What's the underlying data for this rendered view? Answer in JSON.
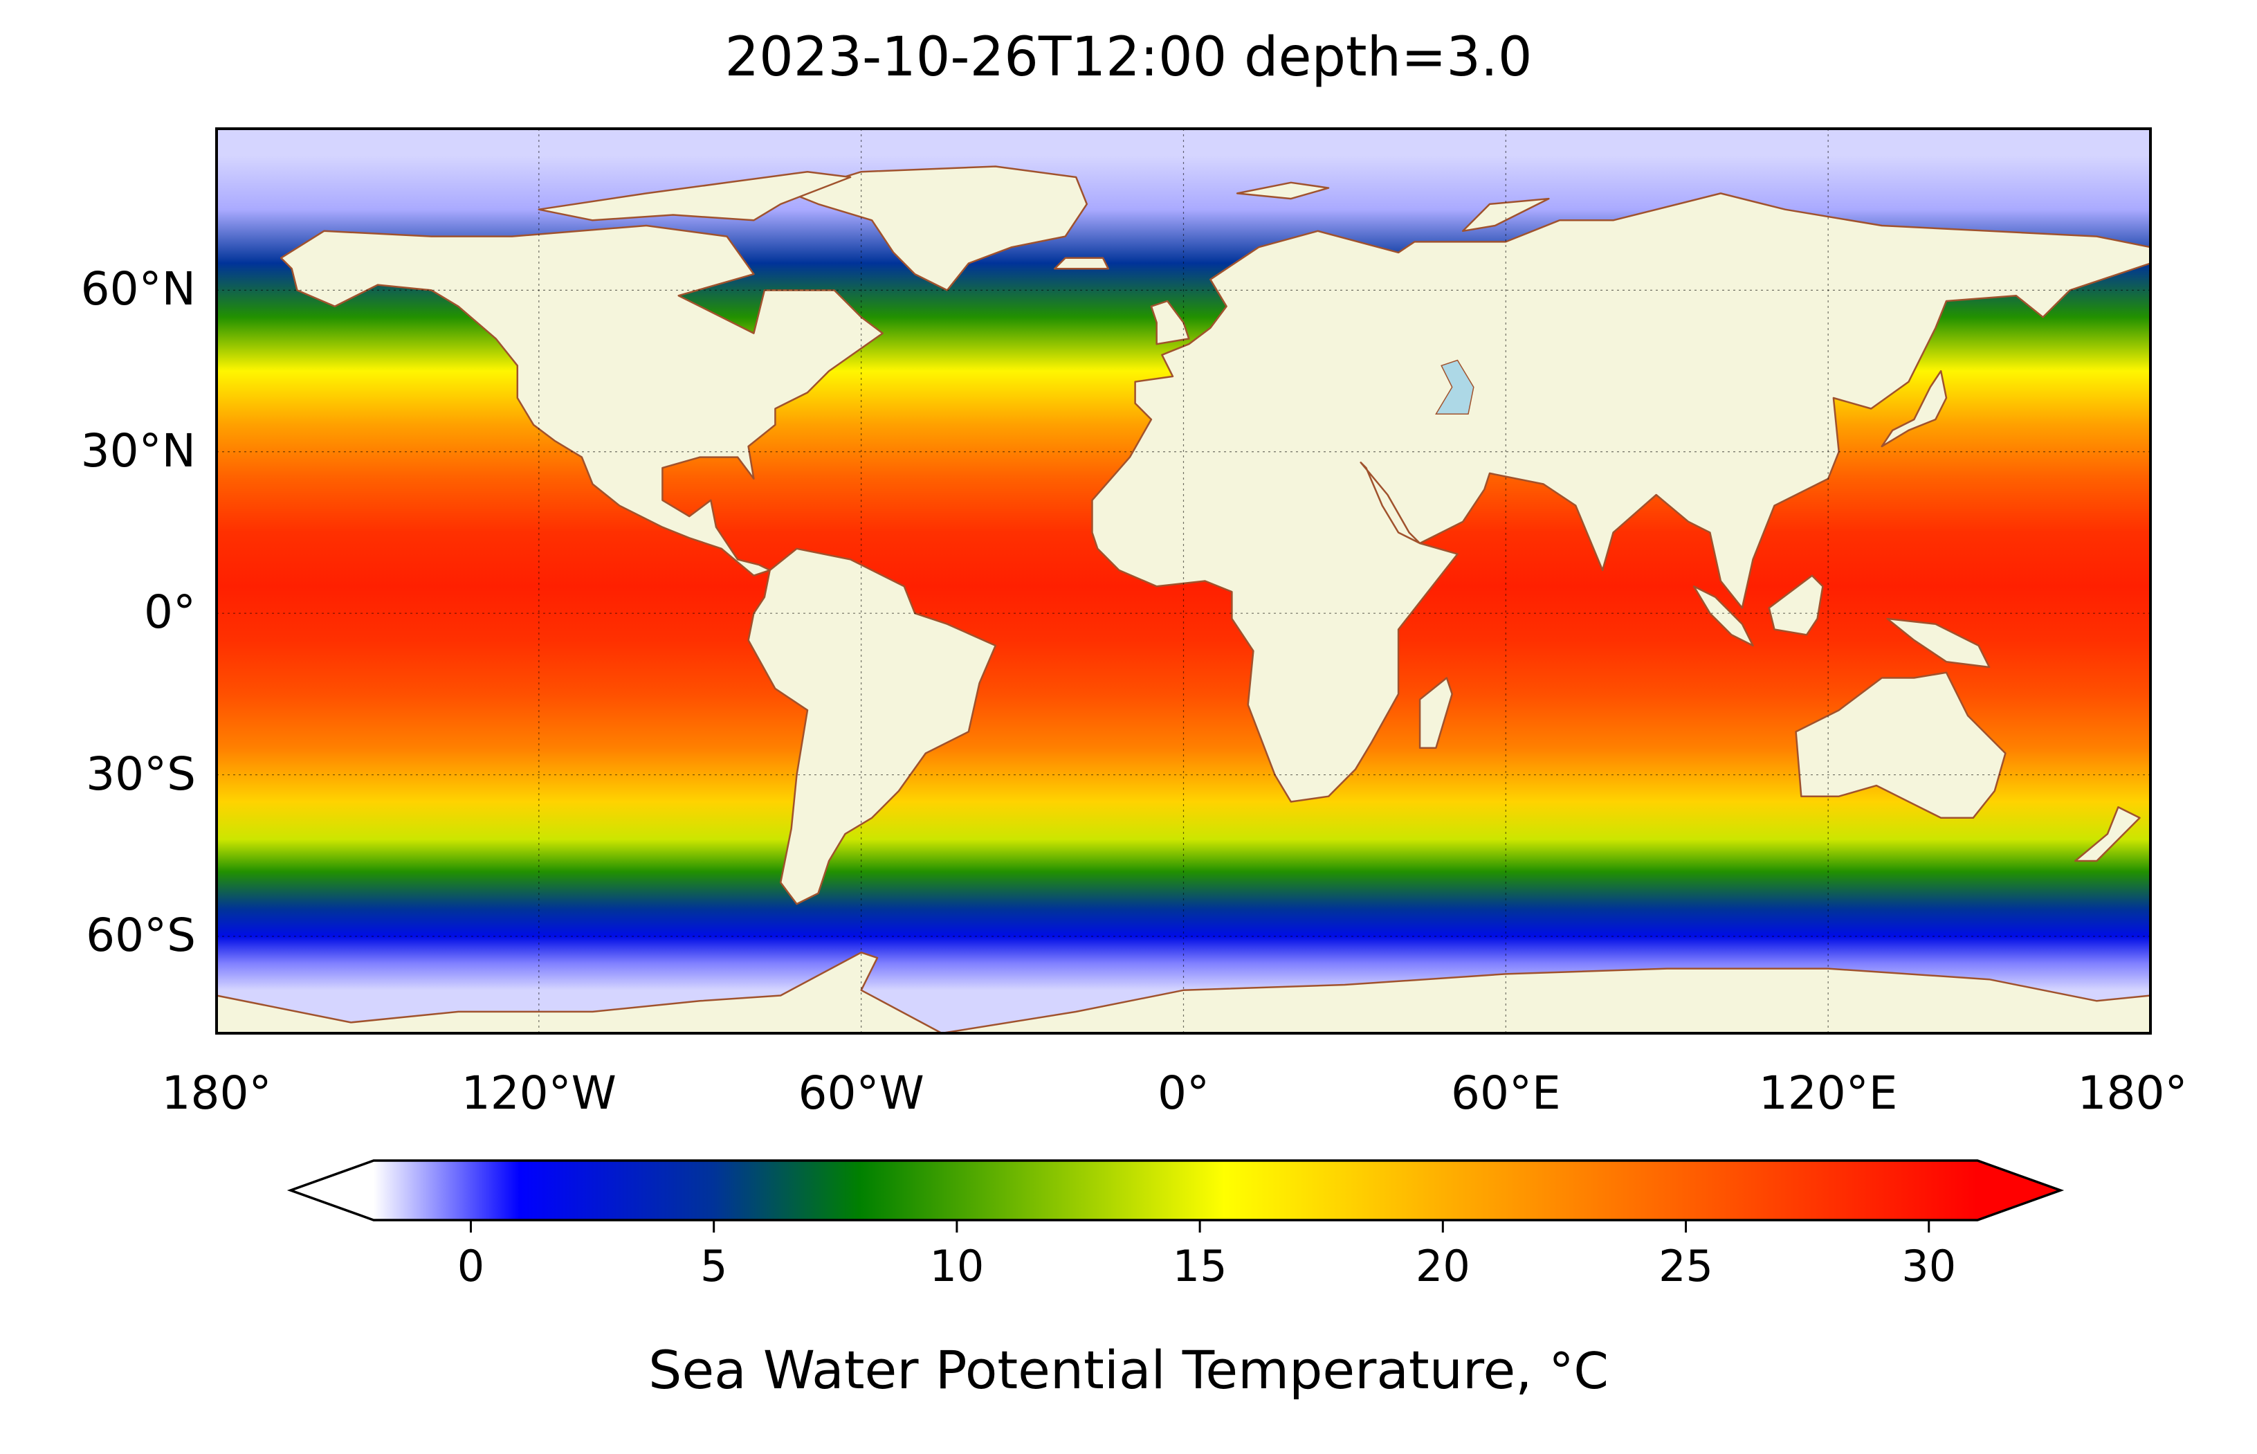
{
  "title": "2023-10-26T12:00 depth=3.0",
  "map": {
    "type": "heatmap",
    "projection": "PlateCarree",
    "variable": "Sea Water Potential Temperature",
    "units": "°C",
    "extent": {
      "lon": [
        -180,
        180
      ],
      "lat": [
        -78,
        90
      ]
    },
    "lat_ticks": [
      {
        "value": 60,
        "label": "60°N"
      },
      {
        "value": 30,
        "label": "30°N"
      },
      {
        "value": 0,
        "label": "0°"
      },
      {
        "value": -30,
        "label": "30°S"
      },
      {
        "value": -60,
        "label": "60°S"
      }
    ],
    "lon_ticks": [
      {
        "value": -180,
        "label": "180°"
      },
      {
        "value": -120,
        "label": "120°W"
      },
      {
        "value": -60,
        "label": "60°W"
      },
      {
        "value": 0,
        "label": "0°"
      },
      {
        "value": 60,
        "label": "60°E"
      },
      {
        "value": 120,
        "label": "120°E"
      },
      {
        "value": 180,
        "label": "180°"
      }
    ],
    "gridlines": true,
    "colors": {
      "land": "#f5f5dc",
      "coast": "#a0522d",
      "lakes": "#add8e6"
    }
  },
  "colorbar": {
    "label": "Sea Water Potential Temperature, $^\\circ$C",
    "label_text": "Sea Water Potential Temperature, ",
    "label_unit": "°C",
    "range": [
      -2,
      31
    ],
    "extend": "both",
    "ticks": [
      {
        "value": 0,
        "label": "0"
      },
      {
        "value": 5,
        "label": "5"
      },
      {
        "value": 10,
        "label": "10"
      },
      {
        "value": 15,
        "label": "15"
      },
      {
        "value": 20,
        "label": "20"
      },
      {
        "value": 25,
        "label": "25"
      },
      {
        "value": 30,
        "label": "30"
      }
    ],
    "stops": [
      {
        "value": -2,
        "color": "#ffffff"
      },
      {
        "value": 1,
        "color": "#0000ff"
      },
      {
        "value": 5,
        "color": "#003399"
      },
      {
        "value": 8,
        "color": "#008000"
      },
      {
        "value": 15.5,
        "color": "#ffff00"
      },
      {
        "value": 20,
        "color": "#ffb000"
      },
      {
        "value": 31,
        "color": "#ff0000"
      }
    ]
  },
  "chart_data": {
    "type": "heatmap",
    "title": "2023-10-26T12:00 depth=3.0",
    "xlabel": "",
    "ylabel": "",
    "x_ticks": [
      "180°",
      "120°W",
      "60°W",
      "0°",
      "60°E",
      "120°E",
      "180°"
    ],
    "y_ticks": [
      "60°N",
      "30°N",
      "0°",
      "30°S",
      "60°S"
    ],
    "value_label": "Sea Water Potential Temperature, °C",
    "zonal_profile": [
      {
        "lat": 85,
        "value": -1.5
      },
      {
        "lat": 75,
        "value": -1.0
      },
      {
        "lat": 65,
        "value": 5
      },
      {
        "lat": 55,
        "value": 9
      },
      {
        "lat": 45,
        "value": 16
      },
      {
        "lat": 35,
        "value": 21
      },
      {
        "lat": 25,
        "value": 25
      },
      {
        "lat": 15,
        "value": 28
      },
      {
        "lat": 5,
        "value": 29
      },
      {
        "lat": -5,
        "value": 28
      },
      {
        "lat": -15,
        "value": 26
      },
      {
        "lat": -25,
        "value": 23
      },
      {
        "lat": -35,
        "value": 18
      },
      {
        "lat": -42,
        "value": 14
      },
      {
        "lat": -48,
        "value": 9
      },
      {
        "lat": -55,
        "value": 5
      },
      {
        "lat": -60,
        "value": 2
      },
      {
        "lat": -65,
        "value": -0.5
      },
      {
        "lat": -70,
        "value": -1.5
      }
    ]
  }
}
